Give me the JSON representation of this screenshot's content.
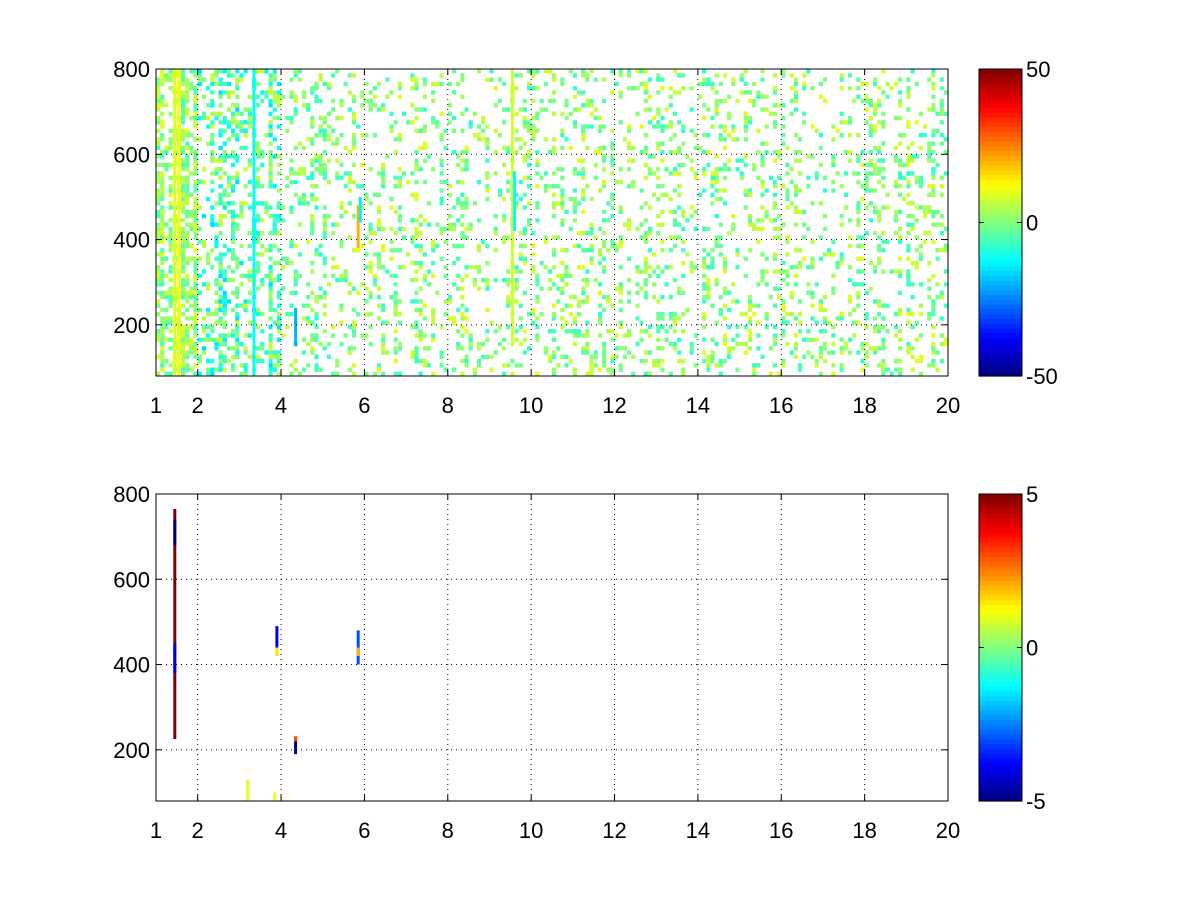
{
  "chart_data": [
    {
      "type": "heatmap",
      "title": "",
      "xlabel": "",
      "ylabel": "",
      "xlim": [
        1,
        20
      ],
      "ylim": [
        80,
        800
      ],
      "xticks": [
        "1",
        "2",
        "4",
        "6",
        "8",
        "10",
        "12",
        "14",
        "16",
        "18",
        "20"
      ],
      "yticks": [
        "200",
        "400",
        "600",
        "800"
      ],
      "grid": true,
      "colormap": "jet",
      "colorbar": {
        "min": -50,
        "max": 50,
        "ticks": [
          "50",
          "0",
          "-50"
        ]
      },
      "cell_size": [
        0.1,
        10
      ],
      "x_bands": [
        {
          "from": 1.0,
          "to": 2.0,
          "density": 0.55,
          "low": -6,
          "high": 10
        },
        {
          "from": 2.0,
          "to": 4.0,
          "density": 0.38,
          "low": -16,
          "high": 8
        },
        {
          "from": 4.0,
          "to": 5.2,
          "density": 0.22,
          "low": -10,
          "high": 8
        },
        {
          "from": 5.2,
          "to": 8.0,
          "density": 0.18,
          "low": -8,
          "high": 10
        },
        {
          "from": 8.0,
          "to": 12.0,
          "density": 0.24,
          "low": -8,
          "high": 10
        },
        {
          "from": 12.0,
          "to": 20.0,
          "density": 0.2,
          "low": -8,
          "high": 10
        }
      ],
      "features": [
        {
          "x": 1.55,
          "y_from": 80,
          "y_to": 800,
          "value": 12
        },
        {
          "x": 1.45,
          "y_from": 80,
          "y_to": 800,
          "value": 9
        },
        {
          "x": 3.35,
          "y_from": 80,
          "y_to": 800,
          "value": -12
        },
        {
          "x": 5.85,
          "y_from": 380,
          "y_to": 480,
          "value": 20
        },
        {
          "x": 5.9,
          "y_from": 440,
          "y_to": 500,
          "value": -14
        },
        {
          "x": 4.35,
          "y_from": 150,
          "y_to": 240,
          "value": -20
        },
        {
          "x": 9.55,
          "y_from": 150,
          "y_to": 800,
          "value": 8
        },
        {
          "x": 9.6,
          "y_from": 420,
          "y_to": 560,
          "value": -12
        }
      ]
    },
    {
      "type": "heatmap",
      "title": "",
      "xlabel": "",
      "ylabel": "",
      "xlim": [
        1,
        20
      ],
      "ylim": [
        80,
        800
      ],
      "xticks": [
        "1",
        "2",
        "4",
        "6",
        "8",
        "10",
        "12",
        "14",
        "16",
        "18",
        "20"
      ],
      "yticks": [
        "200",
        "400",
        "600",
        "800"
      ],
      "grid": true,
      "colormap": "jet",
      "colorbar": {
        "min": -5,
        "max": 5,
        "ticks": [
          "5",
          "0",
          "-5"
        ]
      },
      "features": [
        {
          "x": 1.45,
          "y_from": 225,
          "y_to": 765,
          "value": 5
        },
        {
          "x": 1.45,
          "y_from": 680,
          "y_to": 740,
          "value": -5
        },
        {
          "x": 1.45,
          "y_from": 380,
          "y_to": 450,
          "value": -4
        },
        {
          "x": 3.9,
          "y_from": 440,
          "y_to": 490,
          "value": -4
        },
        {
          "x": 3.9,
          "y_from": 420,
          "y_to": 440,
          "value": 1.5
        },
        {
          "x": 5.85,
          "y_from": 400,
          "y_to": 480,
          "value": -3
        },
        {
          "x": 5.85,
          "y_from": 420,
          "y_to": 440,
          "value": 2
        },
        {
          "x": 4.35,
          "y_from": 190,
          "y_to": 230,
          "value": -5
        },
        {
          "x": 4.35,
          "y_from": 220,
          "y_to": 232,
          "value": 3
        },
        {
          "x": 3.2,
          "y_from": 80,
          "y_to": 130,
          "value": 1
        },
        {
          "x": 3.85,
          "y_from": 80,
          "y_to": 100,
          "value": 1
        }
      ]
    }
  ]
}
